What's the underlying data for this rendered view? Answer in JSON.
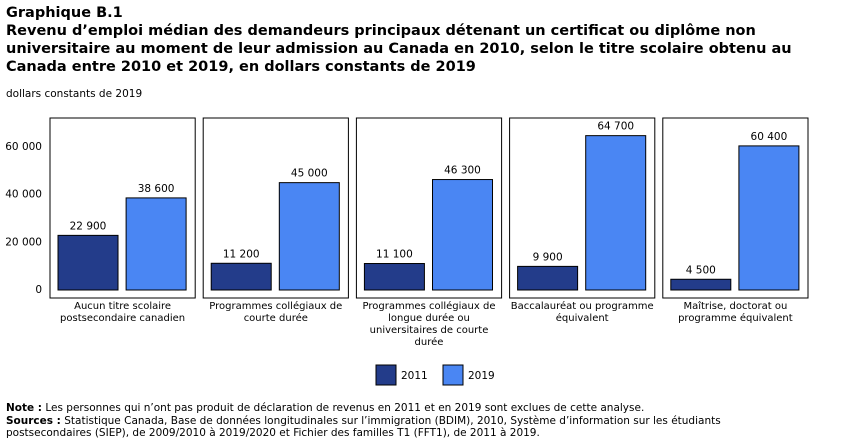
{
  "chart_data": {
    "type": "bar",
    "title_label": "Graphique B.1",
    "title": "Revenu d’emploi médian des demandeurs principaux détenant un certificat ou diplôme non universitaire au moment de leur admission au Canada en 2010, selon le titre scolaire obtenu au Canada entre 2010 et 2019, en dollars constants de 2019",
    "y_label": "dollars constants de 2019",
    "categories": [
      "Aucun titre scolaire postsecondaire canadien",
      "Programmes collégiaux de courte durée",
      "Programmes collégiaux de longue durée ou universitaires de courte durée",
      "Baccalauréat ou programme équivalent",
      "Maîtrise, doctorat ou programme équivalent"
    ],
    "series": [
      {
        "name": "2011",
        "color": "#233c8a",
        "values": [
          22900,
          11200,
          11100,
          9900,
          4500
        ],
        "value_labels": [
          "22 900",
          "11 200",
          "11 100",
          "9 900",
          "4 500"
        ]
      },
      {
        "name": "2019",
        "color": "#4a86f3",
        "values": [
          38600,
          45000,
          46300,
          64700,
          60400
        ],
        "value_labels": [
          "38 600",
          "45 000",
          "46 300",
          "64 700",
          "60 400"
        ]
      }
    ],
    "ylim": [
      0,
      70000
    ],
    "yticks": [
      {
        "value": 0,
        "label": "0"
      },
      {
        "value": 20000,
        "label": "20 000"
      },
      {
        "value": 40000,
        "label": "40 000"
      },
      {
        "value": 60000,
        "label": "60 000"
      }
    ],
    "grid": false,
    "notes": [
      {
        "label": "Note :",
        "text": "Les personnes qui n’ont pas produit de déclaration de revenus en 2011 et en 2019 sont exclues de cette analyse."
      },
      {
        "label": "Sources :",
        "text": "Statistique Canada, Base de données longitudinales sur l’immigration (BDIM), 2010, Système d’information sur les étudiants postsecondaires (SIEP), de 2009/2010 à 2019/2020 et Fichier des familles T1 (FFT1), de 2011 à 2019."
      }
    ]
  }
}
